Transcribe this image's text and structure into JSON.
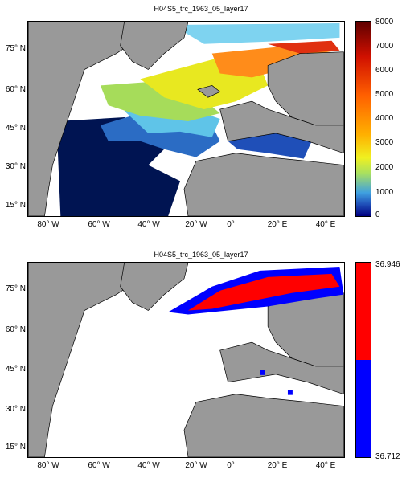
{
  "panels": [
    {
      "title": "H04S5_trc_1963_05_layer17",
      "y_ticks": [
        "75° N",
        "60° N",
        "45° N",
        "30° N",
        "15° N"
      ],
      "x_ticks": [
        "80° W",
        "60° W",
        "40° W",
        "20° W",
        "0°",
        "20° E",
        "40° E"
      ],
      "colorbar": {
        "ticks": [
          "8000",
          "7000",
          "6000",
          "5000",
          "4000",
          "3000",
          "2000",
          "1000",
          "0"
        ],
        "colors": [
          "#000080",
          "#1f4fb8",
          "#3fa0e0",
          "#a8e060",
          "#f0f020",
          "#ffb000",
          "#ff6000",
          "#d01000",
          "#600000"
        ]
      }
    },
    {
      "title": "H04S5_trc_1963_05_layer17",
      "y_ticks": [
        "75° N",
        "60° N",
        "45° N",
        "30° N",
        "15° N"
      ],
      "x_ticks": [
        "80° W",
        "60° W",
        "40° W",
        "20° W",
        "0°",
        "20° E",
        "40° E"
      ],
      "colorbar": {
        "ticks": [
          "36.946",
          "36.712"
        ],
        "colors": [
          "#ff0000",
          "#0000ff"
        ]
      }
    }
  ],
  "colors": {
    "land": "#999999",
    "ocean": "#ffffff",
    "deep": "#001452"
  }
}
